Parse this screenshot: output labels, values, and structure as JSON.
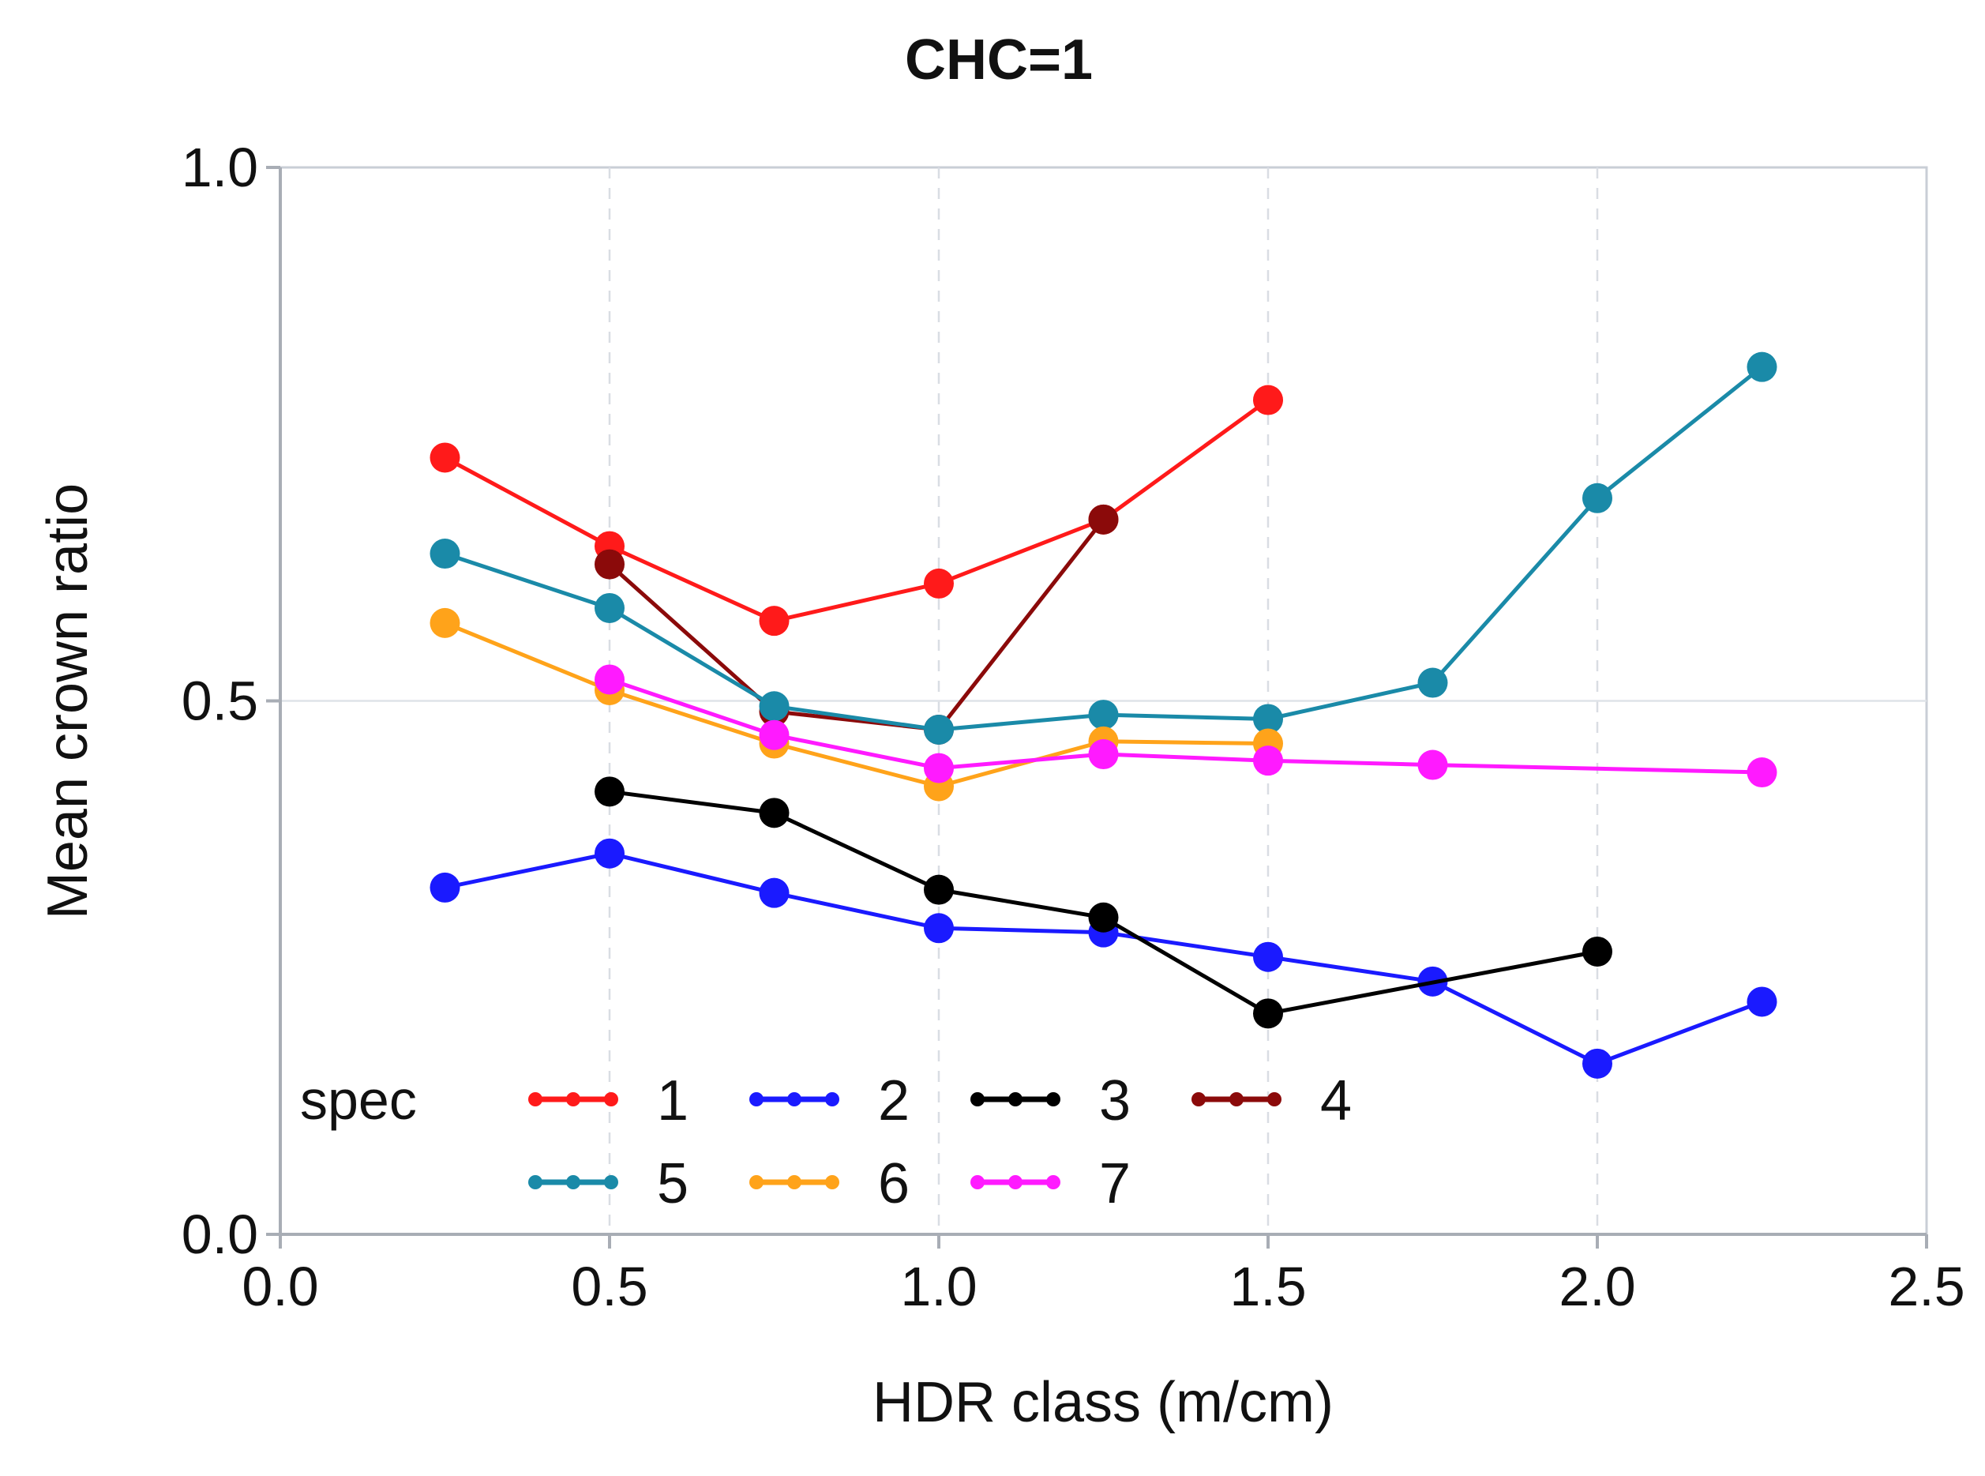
{
  "chart_data": {
    "type": "line",
    "title": "CHC=1",
    "xlabel": "HDR class (m/cm)",
    "ylabel": "Mean crown ratio",
    "xlim": [
      0.0,
      2.5
    ],
    "ylim": [
      0.0,
      1.0
    ],
    "x_ticks": [
      "0.0",
      "0.5",
      "1.0",
      "1.5",
      "2.0",
      "2.5"
    ],
    "y_ticks": [
      "0.0",
      "0.5",
      "1.0"
    ],
    "grid": true,
    "legend": {
      "title": "spec",
      "placement": "bottom-left inside plot"
    },
    "series": [
      {
        "name": "1",
        "color": "#ff1a1a",
        "x": [
          0.25,
          0.5,
          0.75,
          1.0,
          1.25,
          1.5
        ],
        "y": [
          0.728,
          0.645,
          0.575,
          0.61,
          0.67,
          0.782
        ]
      },
      {
        "name": "2",
        "color": "#1a1aff",
        "x": [
          0.25,
          0.5,
          0.75,
          1.0,
          1.25,
          1.5,
          1.75,
          2.0,
          2.25
        ],
        "y": [
          0.325,
          0.357,
          0.32,
          0.287,
          0.283,
          0.26,
          0.237,
          0.16,
          0.218
        ]
      },
      {
        "name": "3",
        "color": "#000000",
        "x": [
          0.5,
          0.75,
          1.0,
          1.25,
          1.5,
          2.0
        ],
        "y": [
          0.415,
          0.395,
          0.323,
          0.297,
          0.207,
          0.265
        ]
      },
      {
        "name": "4",
        "color": "#8b0a0a",
        "x": [
          0.5,
          0.75,
          1.0,
          1.25
        ],
        "y": [
          0.628,
          0.49,
          0.473,
          0.67
        ]
      },
      {
        "name": "5",
        "color": "#1a8aa8",
        "x": [
          0.25,
          0.5,
          0.75,
          1.0,
          1.25,
          1.5,
          1.75,
          2.0,
          2.25
        ],
        "y": [
          0.638,
          0.587,
          0.495,
          0.473,
          0.487,
          0.483,
          0.517,
          0.69,
          0.813
        ]
      },
      {
        "name": "6",
        "color": "#ffa31a",
        "x": [
          0.25,
          0.5,
          0.75,
          1.0,
          1.25,
          1.5
        ],
        "y": [
          0.573,
          0.51,
          0.46,
          0.42,
          0.462,
          0.46
        ]
      },
      {
        "name": "7",
        "color": "#ff1aff",
        "x": [
          0.5,
          0.75,
          1.0,
          1.25,
          1.5,
          1.75,
          2.25
        ],
        "y": [
          0.52,
          0.468,
          0.437,
          0.45,
          0.444,
          0.44,
          0.433
        ]
      }
    ]
  }
}
